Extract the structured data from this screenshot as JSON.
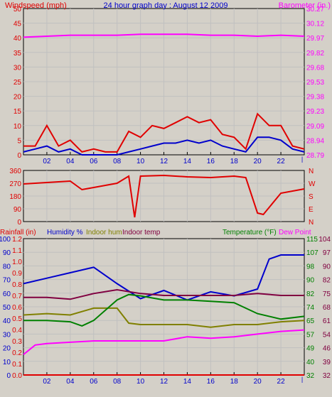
{
  "title": "24 hour graph day : August 12 2009",
  "colors": {
    "red": "#e00000",
    "blue": "#0000cc",
    "magenta": "#ff00ff",
    "olive": "#808000",
    "maroon": "#800040",
    "green": "#008000",
    "grid": "#c0c0c0",
    "bg": "#d4d0c8"
  },
  "chart_data": [
    {
      "type": "line",
      "panel": "wind-barometer",
      "left_axis_label": "Windspeed (mph)",
      "right_axis_label": "Barometer (in.)",
      "left_ticks": [
        "0",
        "5",
        "10",
        "15",
        "20",
        "25",
        "30",
        "35",
        "40",
        "45",
        "50"
      ],
      "right_ticks": [
        "28.79",
        "28.94",
        "29.09",
        "29.23",
        "29.38",
        "29.53",
        "29.68",
        "29.82",
        "29.97",
        "30.12",
        "30.27"
      ],
      "x_ticks": [
        "02",
        "04",
        "06",
        "08",
        "10",
        "12",
        "14",
        "16",
        "18",
        "20",
        "22",
        ""
      ],
      "ylim_left": [
        0,
        50
      ],
      "ylim_right": [
        28.79,
        30.27
      ],
      "series": [
        {
          "color": "magenta",
          "axis": "right",
          "x": [
            0,
            2,
            4,
            6,
            8,
            10,
            12,
            14,
            16,
            18,
            20,
            22,
            24
          ],
          "y": [
            29.98,
            29.99,
            30.0,
            30.0,
            30.0,
            30.01,
            30.01,
            30.01,
            30.0,
            30.0,
            29.99,
            30.0,
            29.99
          ]
        },
        {
          "color": "red",
          "axis": "left",
          "x": [
            0,
            1,
            2,
            3,
            4,
            5,
            6,
            7,
            8,
            9,
            10,
            11,
            12,
            13,
            14,
            15,
            16,
            17,
            18,
            19,
            20,
            21,
            22,
            23,
            24
          ],
          "y": [
            3,
            3,
            10,
            3,
            5,
            1,
            2,
            1,
            1,
            8,
            6,
            10,
            9,
            11,
            13,
            11,
            12,
            7,
            6,
            2,
            14,
            10,
            10,
            3,
            2
          ]
        },
        {
          "color": "blue",
          "axis": "left",
          "x": [
            0,
            1,
            2,
            3,
            4,
            5,
            6,
            7,
            8,
            9,
            10,
            11,
            12,
            13,
            14,
            15,
            16,
            17,
            18,
            19,
            20,
            21,
            22,
            23,
            24
          ],
          "y": [
            1,
            2,
            3,
            1,
            2,
            0,
            0,
            0,
            0,
            1,
            2,
            3,
            4,
            4,
            5,
            4,
            5,
            3,
            2,
            1,
            6,
            6,
            5,
            2,
            1
          ]
        }
      ]
    },
    {
      "type": "line",
      "panel": "wind-direction",
      "left_ticks": [
        "0",
        "90",
        "180",
        "270",
        "360"
      ],
      "right_ticks": [
        "N",
        "E",
        "S",
        "W",
        "N"
      ],
      "ylim": [
        0,
        360
      ],
      "series": [
        {
          "color": "red",
          "x": [
            0,
            2,
            4,
            5,
            6,
            8,
            9,
            9.5,
            10,
            12,
            14,
            16,
            18,
            19,
            20,
            20.5,
            22,
            24
          ],
          "y": [
            265,
            275,
            285,
            225,
            240,
            270,
            320,
            30,
            320,
            325,
            315,
            310,
            320,
            310,
            60,
            50,
            200,
            230
          ]
        }
      ]
    },
    {
      "type": "line",
      "panel": "rain-humidity-temperature",
      "headers": [
        "Rainfall (in)",
        "Humidity %",
        "Indoor hum",
        "Indoor temp",
        "Temperature (°F)",
        "Dew Point"
      ],
      "left_ticks_humidity": [
        "0",
        "10",
        "20",
        "30",
        "40",
        "50",
        "60",
        "70",
        "80",
        "90",
        "100"
      ],
      "left_ticks_rain": [
        "0.0",
        "0.1",
        "0.2",
        "0.3",
        "0.4",
        "0.5",
        "0.6",
        "0.7",
        "0.8",
        "0.9",
        "1.0",
        "1.1",
        "1.2"
      ],
      "right_ticks_a": [
        "32",
        "40",
        "49",
        "57",
        "65",
        "74",
        "82",
        "90",
        "98",
        "107",
        "115"
      ],
      "right_ticks_b": [
        "32",
        "39",
        "46",
        "54",
        "61",
        "68",
        "75",
        "82",
        "90",
        "97",
        "104"
      ],
      "x_ticks": [
        "02",
        "04",
        "06",
        "08",
        "10",
        "12",
        "14",
        "16",
        "18",
        "20",
        "22",
        ""
      ],
      "series": [
        {
          "name": "Humidity %",
          "color": "blue",
          "x": [
            0,
            2,
            4,
            6,
            8,
            10,
            12,
            14,
            16,
            18,
            20,
            21,
            22,
            24
          ],
          "y": [
            67,
            71,
            75,
            79,
            67,
            56,
            62,
            55,
            61,
            58,
            63,
            85,
            88,
            88
          ]
        },
        {
          "name": "Indoor hum",
          "color": "olive",
          "x": [
            0,
            2,
            4,
            6,
            8,
            9,
            10,
            12,
            14,
            16,
            18,
            20,
            22,
            24
          ],
          "y": [
            44,
            45,
            44,
            49,
            49,
            38,
            37,
            37,
            37,
            35,
            37,
            37,
            39,
            40
          ]
        },
        {
          "name": "Indoor temp",
          "color": "maroon",
          "x": [
            0,
            2,
            4,
            6,
            8,
            10,
            12,
            14,
            16,
            18,
            20,
            22,
            24
          ],
          "y": [
            73,
            73,
            72,
            75,
            77,
            75,
            74,
            74,
            74,
            74,
            75,
            74,
            74
          ]
        },
        {
          "name": "Temperature (°F)",
          "color": "green",
          "x": [
            0,
            2,
            4,
            5,
            6,
            8,
            9,
            10,
            12,
            14,
            16,
            18,
            20,
            22,
            24
          ],
          "y": [
            40,
            40,
            39,
            36,
            40,
            55,
            59,
            58,
            55,
            55,
            54,
            53,
            45,
            41,
            43
          ]
        },
        {
          "name": "Dew Point",
          "color": "magenta",
          "x": [
            0,
            1,
            2,
            4,
            6,
            8,
            10,
            12,
            14,
            16,
            18,
            20,
            22,
            24
          ],
          "y": [
            15,
            22,
            23,
            24,
            25,
            25,
            25,
            25,
            28,
            27,
            28,
            30,
            32,
            33
          ]
        },
        {
          "name": "Rainfall (in)",
          "color": "red",
          "x": [
            0,
            24
          ],
          "y": [
            0,
            0
          ]
        }
      ]
    }
  ]
}
